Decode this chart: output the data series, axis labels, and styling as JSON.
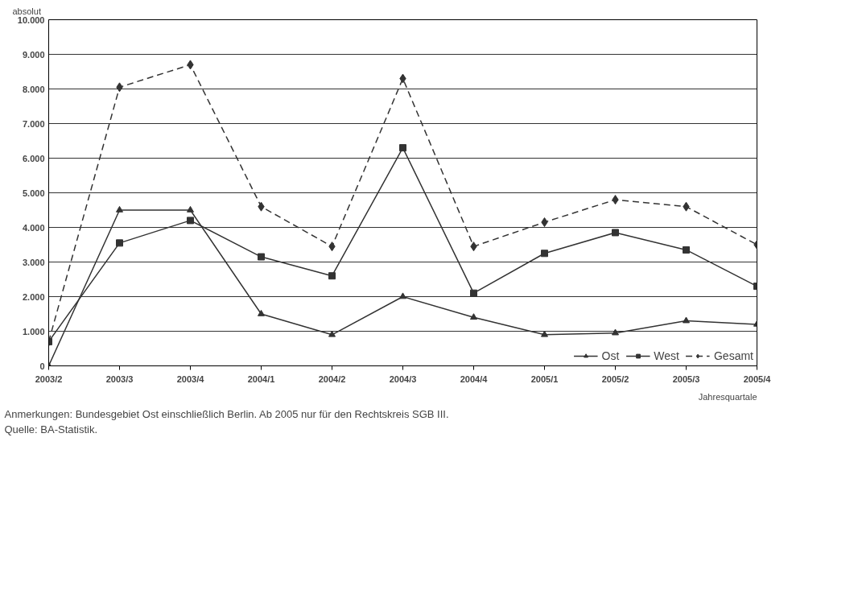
{
  "chart_data": {
    "type": "line",
    "ylabel": "absolut",
    "xlabel": "Jahresquartale",
    "categories": [
      "2003/2",
      "2003/3",
      "2003/4",
      "2004/1",
      "2004/2",
      "2004/3",
      "2004/4",
      "2005/1",
      "2005/2",
      "2005/3",
      "2005/4"
    ],
    "series": [
      {
        "name": "Ost",
        "color": "#333333",
        "marker": "triangle",
        "line_style": "solid",
        "values": [
          0,
          4500,
          4500,
          1500,
          900,
          2000,
          1400,
          900,
          950,
          1300,
          1200
        ]
      },
      {
        "name": "West",
        "color": "#333333",
        "marker": "square",
        "line_style": "solid",
        "values": [
          700,
          3550,
          4200,
          3150,
          2600,
          6300,
          2100,
          3250,
          3850,
          3350,
          2300
        ]
      },
      {
        "name": "Gesamt",
        "color": "#333333",
        "marker": "diamond",
        "line_style": "dashed",
        "values": [
          700,
          8050,
          8700,
          4600,
          3450,
          8300,
          3450,
          4150,
          4800,
          4600,
          3500
        ]
      }
    ],
    "ylim": [
      0,
      10000
    ],
    "yticks": [
      {
        "value": 0,
        "label": "0"
      },
      {
        "value": 1000,
        "label": "1.000"
      },
      {
        "value": 2000,
        "label": "2.000"
      },
      {
        "value": 3000,
        "label": "3.000"
      },
      {
        "value": 4000,
        "label": "4.000"
      },
      {
        "value": 5000,
        "label": "5.000"
      },
      {
        "value": 6000,
        "label": "6.000"
      },
      {
        "value": 7000,
        "label": "7.000"
      },
      {
        "value": 8000,
        "label": "8.000"
      },
      {
        "value": 9000,
        "label": "9.000"
      },
      {
        "value": 10000,
        "label": "10.000"
      }
    ],
    "grid": "y",
    "legend": "bottom right",
    "annotations": [
      "Anmerkungen: Bundesgebiet Ost einschließlich Berlin. Ab 2005 nur für den Rechtskreis SGB III.",
      "Quelle: BA-Statistik."
    ]
  }
}
